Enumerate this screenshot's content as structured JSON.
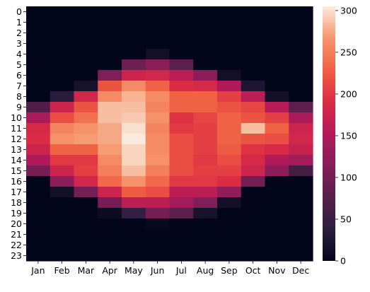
{
  "chart_data": {
    "type": "heatmap",
    "title": "",
    "xlabel": "",
    "ylabel": "",
    "x_categories": [
      "Jan",
      "Feb",
      "Mar",
      "Apr",
      "May",
      "Jun",
      "Jul",
      "Aug",
      "Sep",
      "Oct",
      "Nov",
      "Dec"
    ],
    "y_categories": [
      "0",
      "1",
      "2",
      "3",
      "4",
      "5",
      "6",
      "7",
      "8",
      "9",
      "10",
      "11",
      "12",
      "13",
      "14",
      "15",
      "16",
      "17",
      "18",
      "19",
      "20",
      "21",
      "22",
      "23"
    ],
    "values": [
      [
        0,
        0,
        0,
        0,
        0,
        0,
        0,
        0,
        0,
        0,
        0,
        0
      ],
      [
        0,
        0,
        0,
        0,
        0,
        0,
        0,
        0,
        0,
        0,
        0,
        0
      ],
      [
        0,
        0,
        0,
        0,
        0,
        0,
        0,
        0,
        0,
        0,
        0,
        0
      ],
      [
        0,
        0,
        0,
        0,
        0,
        0,
        0,
        0,
        0,
        0,
        0,
        0
      ],
      [
        0,
        0,
        0,
        0,
        0,
        15,
        0,
        0,
        0,
        0,
        0,
        0
      ],
      [
        0,
        0,
        0,
        0,
        95,
        120,
        80,
        0,
        0,
        0,
        0,
        0
      ],
      [
        0,
        0,
        0,
        110,
        175,
        180,
        160,
        120,
        15,
        0,
        0,
        0
      ],
      [
        0,
        0,
        20,
        220,
        260,
        230,
        190,
        185,
        150,
        25,
        0,
        0
      ],
      [
        0,
        35,
        180,
        260,
        280,
        260,
        230,
        230,
        205,
        160,
        15,
        0
      ],
      [
        70,
        175,
        220,
        285,
        285,
        255,
        230,
        230,
        220,
        210,
        155,
        80
      ],
      [
        145,
        215,
        240,
        285,
        290,
        265,
        195,
        210,
        230,
        220,
        205,
        145
      ],
      [
        185,
        255,
        265,
        275,
        300,
        255,
        200,
        205,
        230,
        285,
        230,
        175
      ],
      [
        190,
        265,
        270,
        275,
        305,
        260,
        215,
        205,
        230,
        220,
        215,
        180
      ],
      [
        175,
        230,
        230,
        270,
        295,
        260,
        215,
        205,
        225,
        195,
        185,
        170
      ],
      [
        150,
        200,
        200,
        260,
        295,
        265,
        215,
        200,
        215,
        185,
        150,
        140
      ],
      [
        100,
        175,
        205,
        250,
        285,
        250,
        215,
        205,
        205,
        175,
        120,
        60
      ],
      [
        0,
        120,
        180,
        235,
        265,
        235,
        200,
        200,
        190,
        100,
        0,
        0
      ],
      [
        0,
        15,
        100,
        175,
        225,
        215,
        160,
        160,
        125,
        0,
        0,
        0
      ],
      [
        0,
        0,
        0,
        100,
        160,
        160,
        140,
        110,
        15,
        0,
        0,
        0
      ],
      [
        0,
        0,
        0,
        10,
        45,
        100,
        80,
        20,
        0,
        0,
        0,
        0
      ],
      [
        0,
        0,
        0,
        0,
        0,
        5,
        0,
        0,
        0,
        0,
        0,
        0
      ],
      [
        0,
        0,
        0,
        0,
        0,
        0,
        0,
        0,
        0,
        0,
        0,
        0
      ],
      [
        0,
        0,
        0,
        0,
        0,
        0,
        0,
        0,
        0,
        0,
        0,
        0
      ],
      [
        0,
        0,
        0,
        0,
        0,
        0,
        0,
        0,
        0,
        0,
        0,
        0
      ]
    ],
    "vmin": 0,
    "vmax": 305,
    "colormap": "rocket",
    "colorbar_ticks": [
      0,
      50,
      100,
      150,
      200,
      250,
      300
    ],
    "grid": false
  }
}
